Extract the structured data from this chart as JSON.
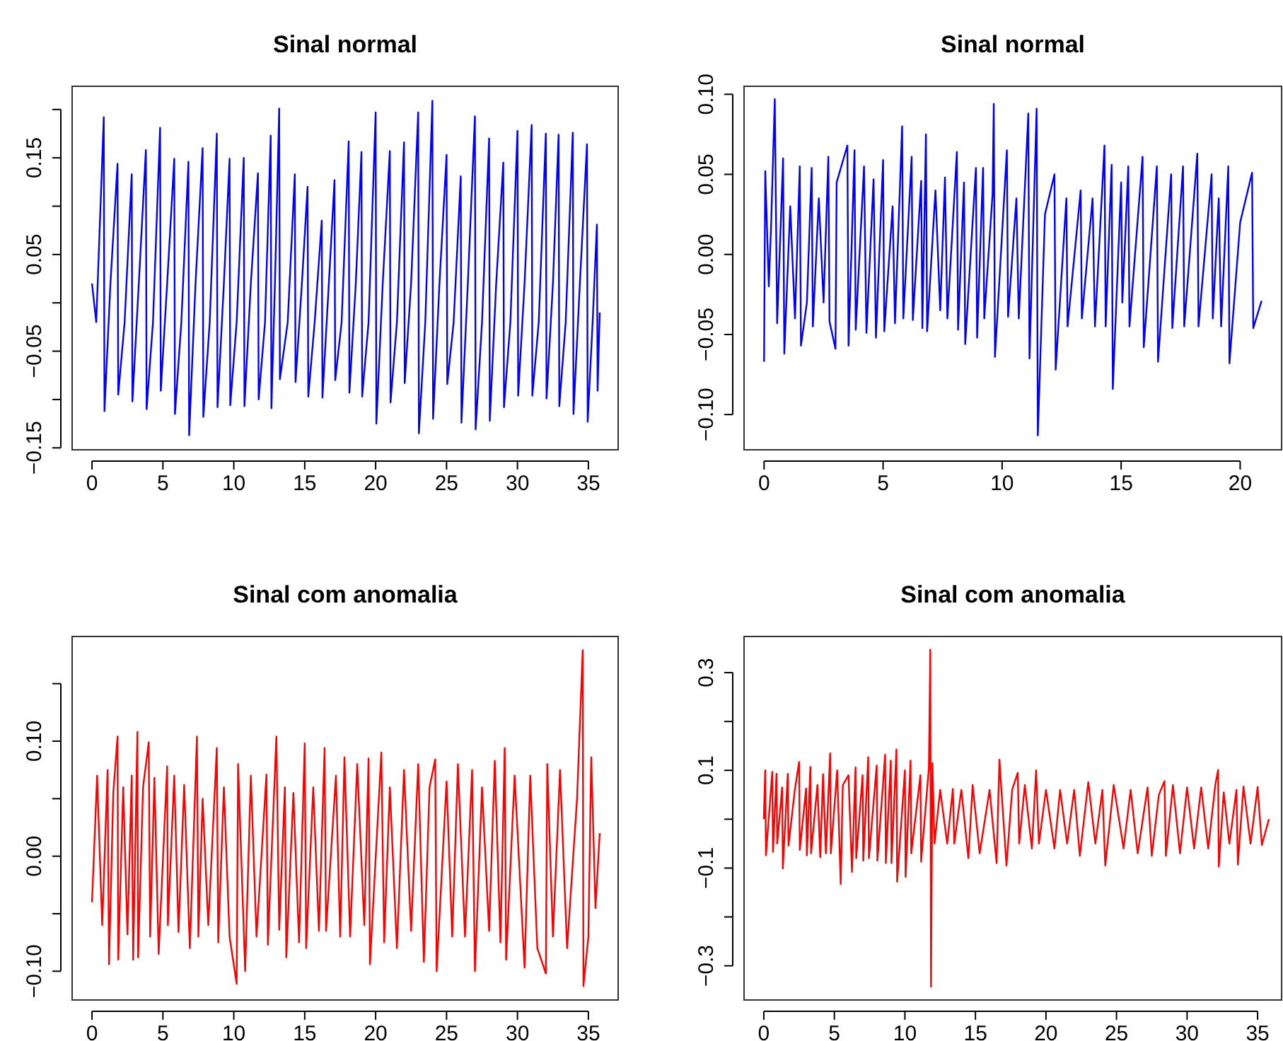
{
  "chart_data": [
    {
      "type": "line",
      "title": "Sinal normal",
      "xlim": [
        -1.4,
        37.1
      ],
      "ylim": [
        -0.152,
        0.224
      ],
      "xticks": [
        0,
        5,
        10,
        15,
        20,
        25,
        30,
        35
      ],
      "yticks": [
        {
          "value": -0.15,
          "label": "−0.15"
        },
        {
          "value": -0.1,
          "label": null
        },
        {
          "value": -0.05,
          "label": "−0.05"
        },
        {
          "value": 0,
          "label": null
        },
        {
          "value": 0.05,
          "label": "0.05"
        },
        {
          "value": 0.1,
          "label": null
        },
        {
          "value": 0.15,
          "label": "0.15"
        },
        {
          "value": 0.2,
          "label": null
        }
      ],
      "grid": false,
      "line_style": "solid",
      "marker": "none",
      "x": [
        0,
        0.3,
        0.83,
        0.88,
        1.3,
        1.8,
        1.85,
        2.3,
        2.8,
        2.85,
        3.3,
        3.8,
        3.85,
        4.3,
        4.8,
        4.85,
        5.3,
        5.8,
        5.85,
        6.3,
        6.8,
        6.85,
        7.3,
        7.8,
        7.85,
        8.3,
        8.8,
        8.85,
        9.3,
        9.7,
        9.75,
        10.2,
        10.7,
        10.75,
        11.2,
        11.7,
        11.75,
        12.2,
        12.6,
        12.65,
        12.9,
        13.2,
        13.25,
        13.8,
        14.3,
        14.35,
        14.8,
        15.2,
        15.25,
        15.7,
        16.2,
        16.25,
        16.7,
        17.1,
        17.15,
        17.6,
        18.1,
        18.15,
        18.6,
        19.0,
        19.05,
        19.5,
        20.0,
        20.05,
        20.5,
        21.0,
        21.05,
        21.5,
        22.0,
        22.05,
        22.5,
        23.0,
        23.05,
        23.5,
        24.0,
        24.05,
        24.5,
        25.0,
        25.05,
        25.5,
        26.0,
        26.05,
        26.5,
        27.0,
        27.05,
        27.5,
        28.0,
        28.05,
        28.5,
        29.0,
        29.05,
        29.5,
        30.0,
        30.05,
        30.5,
        31.0,
        31.05,
        31.5,
        32.0,
        32.05,
        32.5,
        32.9,
        32.95,
        33.4,
        33.9,
        33.95,
        34.4,
        34.9,
        34.95,
        35.3,
        35.6,
        35.65,
        35.8
      ],
      "series": [
        {
          "color": "#0000ff",
          "values": [
            0.02,
            -0.02,
            0.192,
            -0.112,
            0.02,
            0.144,
            -0.095,
            -0.02,
            0.133,
            -0.102,
            0.02,
            0.158,
            -0.11,
            -0.02,
            0.181,
            -0.091,
            0.02,
            0.149,
            -0.115,
            -0.02,
            0.146,
            -0.137,
            0.02,
            0.16,
            -0.118,
            -0.02,
            0.175,
            -0.108,
            0.02,
            0.149,
            -0.106,
            -0.02,
            0.15,
            -0.107,
            0.02,
            0.134,
            -0.1,
            -0.02,
            0.173,
            -0.109,
            0.02,
            0.201,
            -0.079,
            -0.02,
            0.133,
            -0.082,
            0.02,
            0.12,
            -0.097,
            -0.02,
            0.085,
            -0.098,
            0.02,
            0.127,
            -0.08,
            -0.02,
            0.167,
            -0.093,
            0.02,
            0.156,
            -0.097,
            -0.02,
            0.197,
            -0.125,
            0.02,
            0.157,
            -0.103,
            -0.02,
            0.166,
            -0.083,
            0.02,
            0.197,
            -0.135,
            -0.02,
            0.209,
            -0.12,
            0.02,
            0.153,
            -0.084,
            -0.02,
            0.131,
            -0.124,
            0.02,
            0.193,
            -0.131,
            -0.02,
            0.17,
            -0.122,
            0.02,
            0.145,
            -0.108,
            -0.02,
            0.178,
            -0.096,
            0.02,
            0.184,
            -0.096,
            -0.02,
            0.175,
            -0.099,
            0.02,
            0.174,
            -0.107,
            -0.02,
            0.176,
            -0.115,
            0.02,
            0.164,
            -0.123,
            -0.02,
            0.081,
            -0.091,
            -0.01
          ]
        }
      ]
    },
    {
      "type": "line",
      "title": "Sinal normal",
      "xlim": [
        -0.84,
        21.74
      ],
      "ylim": [
        -0.122,
        0.105
      ],
      "xticks": [
        0,
        5,
        10,
        15,
        20
      ],
      "yticks": [
        {
          "value": -0.1,
          "label": "−0.10"
        },
        {
          "value": -0.05,
          "label": "−0.05"
        },
        {
          "value": 0,
          "label": "0.00"
        },
        {
          "value": 0.05,
          "label": "0.05"
        },
        {
          "value": 0.1,
          "label": "0.10"
        }
      ],
      "grid": false,
      "line_style": "solid",
      "marker": "none",
      "x": [
        0,
        0.05,
        0.2,
        0.3,
        0.45,
        0.55,
        0.8,
        0.85,
        1.1,
        1.3,
        1.5,
        1.55,
        1.8,
        2.0,
        2.05,
        2.3,
        2.5,
        2.7,
        2.75,
        3.0,
        3.05,
        3.5,
        3.55,
        3.8,
        3.85,
        4.2,
        4.3,
        4.6,
        4.7,
        5.0,
        5.05,
        5.4,
        5.5,
        5.8,
        5.85,
        6.2,
        6.25,
        6.6,
        6.65,
        6.8,
        6.85,
        7.2,
        7.4,
        7.6,
        7.7,
        8.1,
        8.15,
        8.4,
        8.45,
        8.9,
        8.95,
        9.2,
        9.25,
        9.6,
        9.65,
        9.7,
        10.2,
        10.25,
        10.6,
        10.7,
        11.1,
        11.15,
        11.45,
        11.5,
        11.8,
        12.2,
        12.25,
        12.7,
        12.75,
        13.3,
        13.35,
        13.8,
        13.9,
        14.3,
        14.35,
        14.6,
        14.65,
        15.0,
        15.05,
        15.3,
        15.35,
        15.9,
        15.95,
        16.5,
        16.55,
        17.1,
        17.15,
        17.6,
        17.65,
        18.2,
        18.25,
        18.8,
        18.85,
        19.1,
        19.2,
        19.5,
        19.55,
        20.0,
        20.5,
        20.55,
        20.9
      ],
      "series": [
        {
          "color": "#0000ff",
          "values": [
            -0.067,
            0.052,
            -0.02,
            0.02,
            0.097,
            -0.043,
            0.06,
            -0.062,
            0.03,
            -0.04,
            0.055,
            -0.057,
            -0.03,
            0.054,
            -0.045,
            0.035,
            -0.03,
            0.061,
            -0.042,
            -0.059,
            0.045,
            0.068,
            -0.057,
            0.065,
            -0.047,
            0.055,
            -0.049,
            0.047,
            -0.052,
            0.059,
            -0.048,
            0.03,
            -0.043,
            0.08,
            -0.04,
            0.061,
            -0.041,
            0.046,
            -0.046,
            0.075,
            -0.048,
            0.04,
            -0.035,
            0.048,
            -0.04,
            0.064,
            -0.047,
            0.045,
            -0.056,
            0.054,
            -0.052,
            0.054,
            -0.04,
            0.038,
            0.094,
            -0.064,
            0.065,
            -0.039,
            0.035,
            -0.04,
            0.088,
            -0.065,
            0.091,
            -0.113,
            0.025,
            0.05,
            -0.072,
            0.035,
            -0.045,
            0.04,
            -0.04,
            0.035,
            -0.045,
            0.068,
            -0.045,
            0.056,
            -0.084,
            0.045,
            -0.03,
            0.055,
            -0.045,
            0.061,
            -0.058,
            0.055,
            -0.067,
            0.05,
            -0.046,
            0.055,
            -0.045,
            0.063,
            -0.045,
            0.05,
            -0.04,
            0.035,
            -0.045,
            0.055,
            -0.068,
            0.02,
            0.051,
            -0.046,
            -0.029
          ]
        }
      ]
    },
    {
      "type": "line",
      "title": "Sinal com anomalia",
      "xlim": [
        -1.4,
        37.1
      ],
      "ylim": [
        -0.125,
        0.191
      ],
      "xticks": [
        0,
        5,
        10,
        15,
        20,
        25,
        30,
        35
      ],
      "yticks": [
        {
          "value": -0.1,
          "label": "−0.10"
        },
        {
          "value": -0.05,
          "label": null
        },
        {
          "value": 0,
          "label": "0.00"
        },
        {
          "value": 0.05,
          "label": null
        },
        {
          "value": 0.1,
          "label": "0.10"
        },
        {
          "value": 0.15,
          "label": null
        }
      ],
      "grid": false,
      "line_style": "solid",
      "marker": "none",
      "x": [
        0,
        0.36,
        0.72,
        1.1,
        1.2,
        1.5,
        1.8,
        1.85,
        2.2,
        2.5,
        2.8,
        2.9,
        3.2,
        3.25,
        3.6,
        4.0,
        4.1,
        4.4,
        4.7,
        5.3,
        5.35,
        5.8,
        6.1,
        6.5,
        6.9,
        7.4,
        7.5,
        7.8,
        8.2,
        8.8,
        8.9,
        9.3,
        9.7,
        10.2,
        10.3,
        10.8,
        11.2,
        11.6,
        12.3,
        12.4,
        13.0,
        13.2,
        13.6,
        13.7,
        14.2,
        14.6,
        15.0,
        15.1,
        15.6,
        16.0,
        16.4,
        16.5,
        17.2,
        17.5,
        17.8,
        18.2,
        18.7,
        19.2,
        19.5,
        19.6,
        20.4,
        20.6,
        21.0,
        21.5,
        22.0,
        22.5,
        23.0,
        23.4,
        23.8,
        24.2,
        24.3,
        25.0,
        25.4,
        25.8,
        26.3,
        26.8,
        27.0,
        27.5,
        28.0,
        28.4,
        28.8,
        29.1,
        29.2,
        29.8,
        30.5,
        30.9,
        31.4,
        32.0,
        32.1,
        32.5,
        33.0,
        33.5,
        34.2,
        34.6,
        34.65,
        35.0,
        35.2,
        35.5,
        35.8
      ],
      "series": [
        {
          "color": "#ff0000",
          "values": [
            -0.04,
            0.07,
            -0.06,
            0.075,
            -0.094,
            0.055,
            0.104,
            -0.09,
            0.06,
            -0.068,
            0.07,
            -0.09,
            0.108,
            -0.088,
            0.06,
            0.099,
            -0.07,
            0.068,
            -0.085,
            0.078,
            -0.06,
            0.07,
            -0.066,
            0.062,
            -0.08,
            0.104,
            -0.07,
            0.05,
            -0.06,
            0.094,
            -0.075,
            0.06,
            -0.07,
            -0.111,
            0.08,
            -0.1,
            0.07,
            -0.07,
            0.071,
            -0.077,
            0.104,
            -0.064,
            0.06,
            -0.088,
            0.055,
            -0.075,
            0.098,
            -0.08,
            0.06,
            -0.065,
            0.094,
            -0.065,
            0.07,
            -0.07,
            0.086,
            -0.07,
            0.08,
            -0.06,
            0.085,
            -0.094,
            0.09,
            -0.075,
            0.06,
            -0.08,
            0.075,
            -0.065,
            0.08,
            -0.092,
            0.06,
            0.084,
            -0.1,
            0.065,
            -0.07,
            0.08,
            -0.07,
            0.075,
            -0.1,
            0.06,
            -0.065,
            0.083,
            -0.075,
            0.094,
            -0.09,
            0.07,
            -0.097,
            0.07,
            -0.08,
            -0.102,
            0.08,
            -0.07,
            0.075,
            -0.08,
            0.05,
            0.179,
            -0.113,
            -0.07,
            0.086,
            -0.045,
            0.02
          ]
        }
      ]
    },
    {
      "type": "line",
      "title": "Sinal com anomalia",
      "xlim": [
        -1.4,
        36.7
      ],
      "ylim": [
        -0.37,
        0.374
      ],
      "xticks": [
        0,
        5,
        10,
        15,
        20,
        25,
        30,
        35
      ],
      "yticks": [
        {
          "value": -0.3,
          "label": "−0.3"
        },
        {
          "value": -0.2,
          "label": null
        },
        {
          "value": -0.1,
          "label": "−0.1"
        },
        {
          "value": 0,
          "label": null
        },
        {
          "value": 0.1,
          "label": "0.1"
        },
        {
          "value": 0.2,
          "label": null
        },
        {
          "value": 0.3,
          "label": "0.3"
        }
      ],
      "grid": false,
      "line_style": "solid",
      "marker": "none",
      "x": [
        0,
        0.1,
        0.15,
        0.6,
        0.65,
        0.9,
        0.95,
        1.3,
        1.35,
        1.7,
        1.75,
        2.2,
        2.5,
        2.55,
        3.0,
        3.05,
        3.3,
        3.35,
        3.8,
        4.0,
        4.2,
        4.4,
        4.7,
        4.75,
        5.2,
        5.45,
        5.6,
        6.0,
        6.25,
        6.5,
        6.55,
        7.0,
        7.05,
        7.4,
        7.45,
        8.0,
        8.05,
        8.6,
        8.65,
        9.0,
        9.05,
        9.4,
        9.45,
        10.0,
        10.05,
        10.4,
        10.45,
        11.1,
        11.15,
        11.7,
        11.8,
        11.85,
        11.95,
        12.1,
        12.5,
        13.0,
        13.4,
        13.5,
        14.0,
        14.5,
        14.8,
        15.3,
        16.0,
        16.5,
        16.7,
        17.2,
        17.6,
        18.0,
        18.1,
        18.5,
        19.0,
        19.3,
        19.5,
        20.0,
        20.6,
        21.0,
        21.5,
        22.0,
        22.4,
        23.0,
        23.5,
        24.0,
        24.2,
        24.8,
        25.5,
        26.0,
        26.5,
        27.2,
        27.5,
        28.0,
        28.4,
        28.5,
        29.0,
        29.5,
        30.0,
        30.5,
        31.0,
        31.5,
        32.0,
        32.2,
        32.25,
        32.6,
        33.0,
        33.5,
        33.6,
        34.0,
        34.5,
        35.0,
        35.3,
        35.8
      ],
      "series": [
        {
          "color": "#ff0000",
          "values": [
            0,
            0.1,
            -0.074,
            0.097,
            -0.067,
            0.093,
            -0.05,
            0.065,
            -0.101,
            0.093,
            -0.054,
            0.06,
            0.117,
            -0.063,
            0.063,
            -0.074,
            0.107,
            -0.07,
            0.07,
            -0.078,
            0.092,
            -0.07,
            0.135,
            -0.07,
            0.1,
            -0.133,
            0.07,
            0.09,
            -0.108,
            0.106,
            -0.08,
            0.09,
            -0.085,
            0.127,
            -0.08,
            0.11,
            -0.085,
            0.132,
            -0.09,
            0.12,
            -0.09,
            0.143,
            -0.128,
            0.1,
            -0.118,
            0.12,
            -0.07,
            0.09,
            -0.087,
            0.105,
            0.347,
            -0.343,
            0.115,
            -0.05,
            0.06,
            -0.05,
            0.062,
            -0.05,
            0.06,
            -0.08,
            0.07,
            -0.07,
            0.06,
            -0.09,
            0.122,
            -0.095,
            0.06,
            0.095,
            -0.05,
            0.07,
            -0.06,
            0.1,
            -0.05,
            0.06,
            -0.06,
            0.06,
            -0.05,
            0.06,
            -0.075,
            0.076,
            -0.05,
            0.06,
            -0.095,
            0.07,
            -0.06,
            0.06,
            -0.07,
            0.065,
            -0.075,
            0.05,
            0.078,
            -0.075,
            0.07,
            -0.07,
            0.065,
            -0.06,
            0.065,
            -0.06,
            0.07,
            0.101,
            -0.097,
            0.055,
            -0.05,
            0.06,
            -0.093,
            0.067,
            -0.05,
            0.066,
            -0.053,
            0
          ]
        }
      ]
    }
  ]
}
